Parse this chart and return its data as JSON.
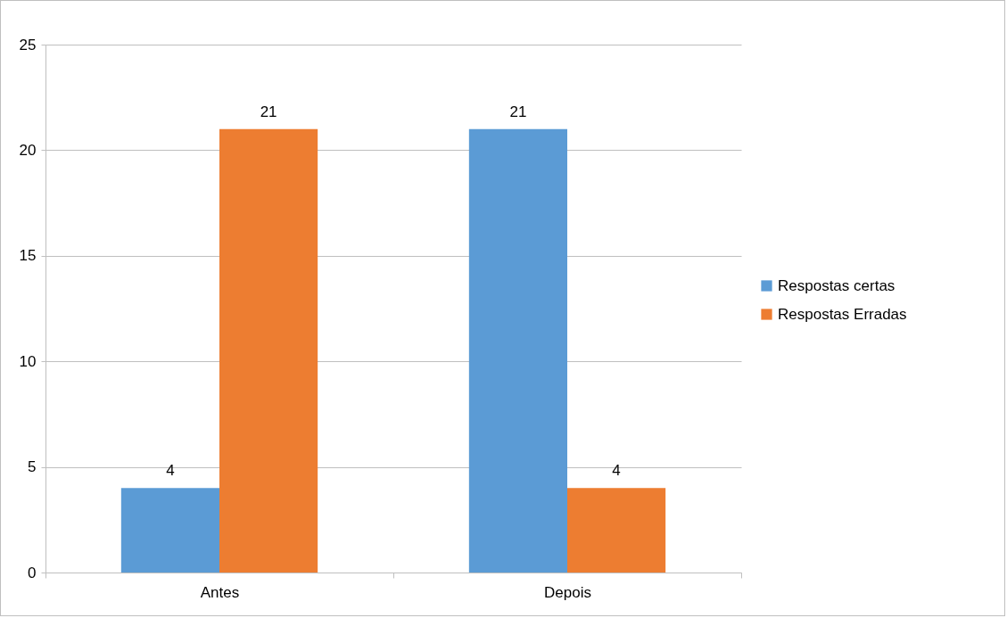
{
  "chart_data": {
    "type": "bar",
    "categories": [
      "Antes",
      "Depois"
    ],
    "series": [
      {
        "name": "Respostas certas",
        "color": "#5b9bd5",
        "values": [
          4,
          21
        ]
      },
      {
        "name": "Respostas Erradas",
        "color": "#ed7d31",
        "values": [
          21,
          4
        ]
      }
    ],
    "ylim": [
      0,
      25
    ],
    "yticks": [
      0,
      5,
      10,
      15,
      20,
      25
    ],
    "grid": "y",
    "legend": "right",
    "data_labels": true
  }
}
